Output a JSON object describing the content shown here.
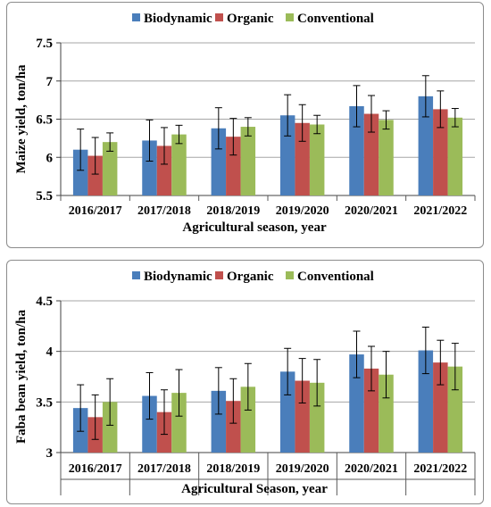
{
  "chart_data": [
    {
      "type": "bar",
      "ylabel": "Maize yield, ton/ha",
      "xlabel": "Agricultural season, year",
      "ylim": [
        5.5,
        7.5
      ],
      "yticks": [
        "5.5",
        "6",
        "6.5",
        "7",
        "7.5"
      ],
      "grid": true,
      "legend_position": "top",
      "categories": [
        "2016/2017",
        "2017/2018",
        "2018/2019",
        "2019/2020",
        "2020/2021",
        "2021/2022"
      ],
      "series": [
        {
          "name": "Biodynamic",
          "color": "#4a7ebb",
          "values": [
            6.1,
            6.22,
            6.38,
            6.55,
            6.67,
            6.8
          ],
          "errors": [
            0.27,
            0.27,
            0.27,
            0.27,
            0.27,
            0.27
          ]
        },
        {
          "name": "Organic",
          "color": "#c0504d",
          "values": [
            6.02,
            6.15,
            6.27,
            6.45,
            6.57,
            6.63
          ],
          "errors": [
            0.24,
            0.24,
            0.24,
            0.24,
            0.24,
            0.24
          ]
        },
        {
          "name": "Conventional",
          "color": "#9bbb59",
          "values": [
            6.2,
            6.3,
            6.4,
            6.43,
            6.49,
            6.52
          ],
          "errors": [
            0.12,
            0.12,
            0.12,
            0.12,
            0.12,
            0.12
          ]
        }
      ]
    },
    {
      "type": "bar",
      "ylabel": "Faba bean yield, ton/ha",
      "xlabel": "Agricultural  Season, year",
      "ylim": [
        3,
        4.5
      ],
      "yticks": [
        "3",
        "3.5",
        "4",
        "4.5"
      ],
      "grid": true,
      "legend_position": "top",
      "categories": [
        "2016/2017",
        "2017/2018",
        "2018/2019",
        "2019/2020",
        "2020/2021",
        "2021/2022"
      ],
      "series": [
        {
          "name": "Biodynamic",
          "color": "#4a7ebb",
          "values": [
            3.44,
            3.56,
            3.61,
            3.8,
            3.97,
            4.01
          ],
          "errors": [
            0.23,
            0.23,
            0.23,
            0.23,
            0.23,
            0.23
          ]
        },
        {
          "name": "Organic",
          "color": "#c0504d",
          "values": [
            3.35,
            3.4,
            3.51,
            3.71,
            3.83,
            3.89
          ],
          "errors": [
            0.22,
            0.22,
            0.22,
            0.22,
            0.22,
            0.22
          ]
        },
        {
          "name": "Conventional",
          "color": "#9bbb59",
          "values": [
            3.5,
            3.59,
            3.65,
            3.69,
            3.77,
            3.85
          ],
          "errors": [
            0.23,
            0.23,
            0.23,
            0.23,
            0.23,
            0.23
          ]
        }
      ]
    }
  ]
}
